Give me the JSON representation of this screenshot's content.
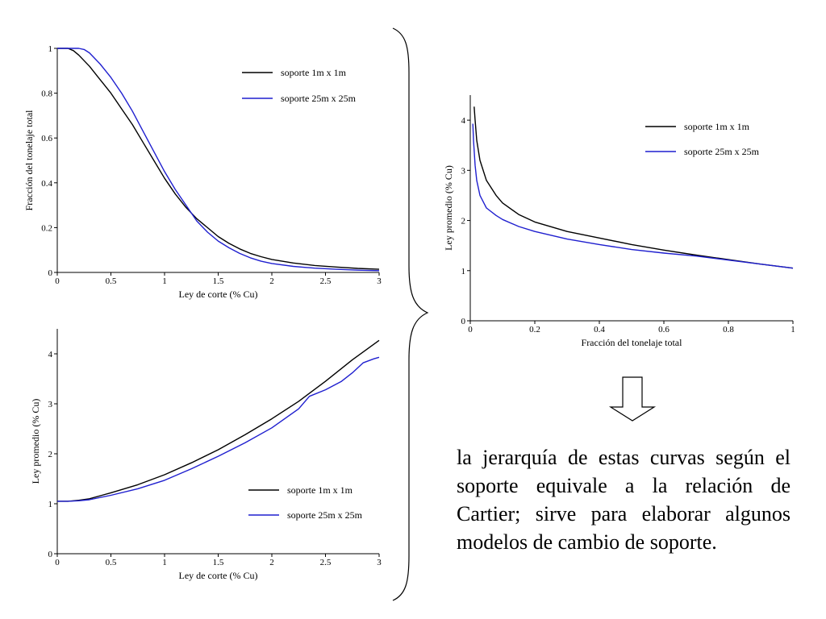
{
  "colors": {
    "series_black": "#000000",
    "series_blue": "#1f1fcf",
    "axis": "#000000"
  },
  "caption": {
    "text": "la jerarquía de estas curvas según el soporte equivale a la relación de Cartier; sirve para elaborar algunos modelos de cambio de soporte."
  },
  "icons": {
    "arrow": "down-arrow-icon",
    "brace": "right-curly-brace-icon"
  },
  "chart_data": [
    {
      "id": "tonnage_vs_cutoff",
      "type": "line",
      "title": "",
      "xlabel": "Ley de corte (% Cu)",
      "ylabel": "Fracción del tonelaje total",
      "xlim": [
        0,
        3
      ],
      "ylim": [
        0,
        1
      ],
      "xticks": [
        0,
        0.5,
        1,
        1.5,
        2,
        2.5,
        3
      ],
      "xtick_labels": [
        "0",
        "0.5",
        "1",
        "1.5",
        "2",
        "2.5",
        "3"
      ],
      "yticks": [
        0,
        0.2,
        0.4,
        0.6,
        0.8,
        1
      ],
      "ytick_labels": [
        "0",
        "0.2",
        "0.4",
        "0.6",
        "0.8",
        "1"
      ],
      "legend_position": "top-right",
      "series": [
        {
          "name": "soporte 1m x 1m",
          "color": "#000000",
          "x": [
            0,
            0.1,
            0.15,
            0.2,
            0.3,
            0.4,
            0.5,
            0.6,
            0.7,
            0.8,
            0.9,
            1.0,
            1.1,
            1.2,
            1.3,
            1.4,
            1.5,
            1.6,
            1.7,
            1.8,
            1.9,
            2.0,
            2.2,
            2.4,
            2.6,
            2.8,
            3.0
          ],
          "y": [
            1.0,
            1.0,
            0.99,
            0.97,
            0.92,
            0.86,
            0.8,
            0.73,
            0.66,
            0.58,
            0.5,
            0.42,
            0.35,
            0.29,
            0.24,
            0.2,
            0.16,
            0.13,
            0.105,
            0.085,
            0.07,
            0.058,
            0.042,
            0.031,
            0.024,
            0.018,
            0.014
          ]
        },
        {
          "name": "soporte 25m x 25m",
          "color": "#1f1fcf",
          "x": [
            0,
            0.1,
            0.2,
            0.25,
            0.3,
            0.4,
            0.5,
            0.6,
            0.7,
            0.8,
            0.9,
            1.0,
            1.1,
            1.2,
            1.3,
            1.4,
            1.5,
            1.6,
            1.7,
            1.8,
            1.9,
            2.0,
            2.2,
            2.4,
            2.6,
            2.8,
            3.0
          ],
          "y": [
            1.0,
            1.0,
            1.0,
            0.995,
            0.98,
            0.93,
            0.87,
            0.8,
            0.72,
            0.63,
            0.54,
            0.45,
            0.37,
            0.3,
            0.23,
            0.18,
            0.14,
            0.11,
            0.085,
            0.065,
            0.05,
            0.04,
            0.027,
            0.019,
            0.014,
            0.01,
            0.008
          ]
        }
      ]
    },
    {
      "id": "grade_vs_cutoff",
      "type": "line",
      "title": "",
      "xlabel": "Ley de corte (% Cu)",
      "ylabel": "Ley promedio (% Cu)",
      "xlim": [
        0,
        3
      ],
      "ylim": [
        0,
        4.5
      ],
      "xticks": [
        0,
        0.5,
        1,
        1.5,
        2,
        2.5,
        3
      ],
      "xtick_labels": [
        "0",
        "0.5",
        "1",
        "1.5",
        "2",
        "2.5",
        "3"
      ],
      "yticks": [
        0,
        1,
        2,
        3,
        4
      ],
      "ytick_labels": [
        "0",
        "1",
        "2",
        "3",
        "4"
      ],
      "legend_position": "bottom-right",
      "series": [
        {
          "name": "soporte 1m x 1m",
          "color": "#000000",
          "x": [
            0,
            0.1,
            0.2,
            0.3,
            0.5,
            0.75,
            1.0,
            1.25,
            1.5,
            1.75,
            2.0,
            2.25,
            2.5,
            2.75,
            3.0
          ],
          "y": [
            1.05,
            1.05,
            1.07,
            1.1,
            1.22,
            1.38,
            1.58,
            1.82,
            2.08,
            2.38,
            2.7,
            3.05,
            3.45,
            3.88,
            4.27
          ]
        },
        {
          "name": "soporte 25m x 25m",
          "color": "#1f1fcf",
          "x": [
            0,
            0.1,
            0.2,
            0.3,
            0.5,
            0.75,
            1.0,
            1.25,
            1.5,
            1.75,
            2.0,
            2.25,
            2.35,
            2.5,
            2.65,
            2.75,
            2.85,
            2.95,
            3.0
          ],
          "y": [
            1.05,
            1.05,
            1.06,
            1.08,
            1.17,
            1.3,
            1.47,
            1.7,
            1.95,
            2.22,
            2.52,
            2.9,
            3.15,
            3.28,
            3.45,
            3.62,
            3.82,
            3.9,
            3.93
          ]
        }
      ]
    },
    {
      "id": "grade_vs_tonnage",
      "type": "line",
      "title": "",
      "xlabel": "Fracción del tonelaje total",
      "ylabel": "Ley promedio (% Cu)",
      "xlim": [
        0,
        1
      ],
      "ylim": [
        0,
        4.5
      ],
      "xticks": [
        0,
        0.2,
        0.4,
        0.6,
        0.8,
        1
      ],
      "xtick_labels": [
        "0",
        "0.2",
        "0.4",
        "0.6",
        "0.8",
        "1"
      ],
      "yticks": [
        0,
        1,
        2,
        3,
        4
      ],
      "ytick_labels": [
        "0",
        "1",
        "2",
        "3",
        "4"
      ],
      "legend_position": "top-right",
      "series": [
        {
          "name": "soporte 1m x 1m",
          "color": "#000000",
          "x": [
            0.012,
            0.015,
            0.02,
            0.03,
            0.05,
            0.08,
            0.1,
            0.15,
            0.2,
            0.3,
            0.4,
            0.5,
            0.6,
            0.7,
            0.8,
            0.9,
            1.0
          ],
          "y": [
            4.27,
            4.0,
            3.6,
            3.2,
            2.8,
            2.5,
            2.35,
            2.12,
            1.97,
            1.78,
            1.65,
            1.52,
            1.41,
            1.31,
            1.22,
            1.13,
            1.05
          ]
        },
        {
          "name": "soporte 25m x 25m",
          "color": "#1f1fcf",
          "x": [
            0.008,
            0.01,
            0.015,
            0.02,
            0.03,
            0.05,
            0.08,
            0.1,
            0.15,
            0.2,
            0.3,
            0.4,
            0.5,
            0.6,
            0.7,
            0.8,
            0.9,
            1.0
          ],
          "y": [
            3.93,
            3.6,
            3.1,
            2.8,
            2.5,
            2.25,
            2.1,
            2.02,
            1.88,
            1.78,
            1.63,
            1.52,
            1.42,
            1.35,
            1.29,
            1.21,
            1.13,
            1.05
          ]
        }
      ]
    }
  ]
}
